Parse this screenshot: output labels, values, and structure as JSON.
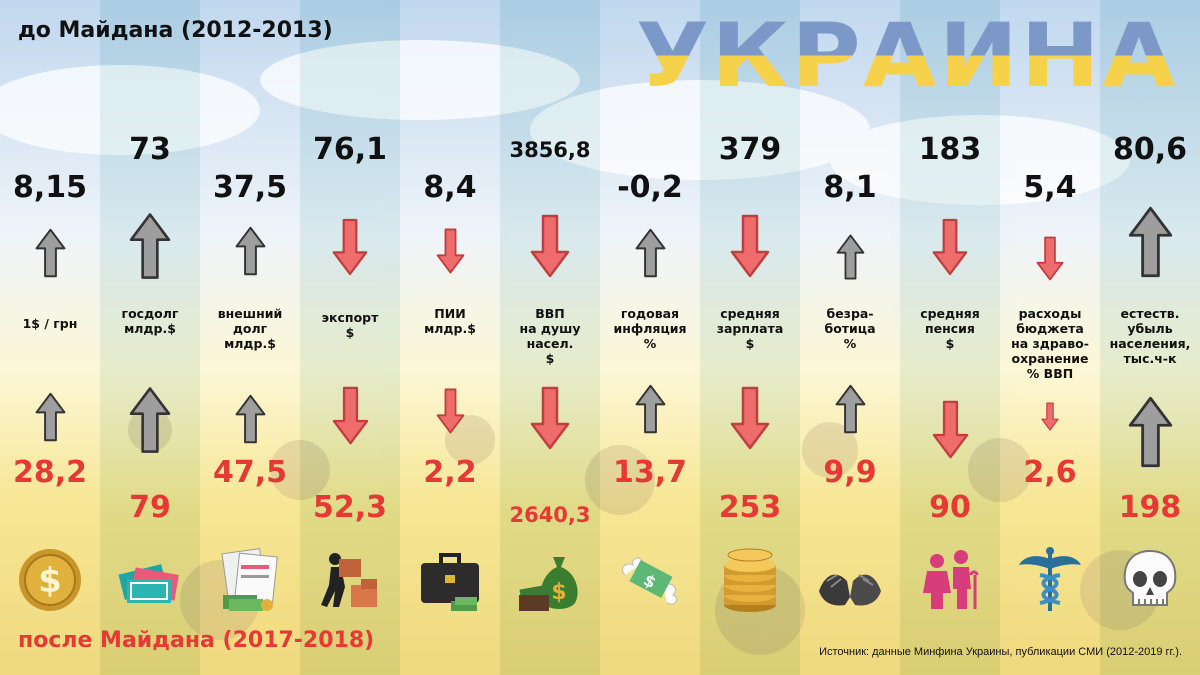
{
  "header": {
    "before": "до Майдана (2012-2013)",
    "after": "после Майдана (2017-2018)",
    "country": "УКРАИНА",
    "source": "Источник: данные Минфина Украины, публикации СМИ (2012-2019 гг.)."
  },
  "colors": {
    "before": "#111111",
    "after": "#e53935",
    "up_arrow": "#9e9e9e",
    "down_arrow": "#ef6c6c"
  },
  "indicators": [
    {
      "label": [
        "1$ / грн"
      ],
      "before": "8,15",
      "after": "28,2",
      "before_dir": "up",
      "after_dir": "up",
      "icon": "gold-coin-icon"
    },
    {
      "label": [
        "госдолг",
        "млдр.$"
      ],
      "before": "73",
      "after": "79",
      "before_dir": "up",
      "after_dir": "up",
      "icon": "banknotes-icon"
    },
    {
      "label": [
        "внешний",
        "долг",
        "млдр.$"
      ],
      "before": "37,5",
      "after": "47,5",
      "before_dir": "up",
      "after_dir": "up",
      "icon": "bills-and-cash-icon"
    },
    {
      "label": [
        "экспорт",
        "$"
      ],
      "before": "76,1",
      "after": "52,3",
      "before_dir": "down",
      "after_dir": "down",
      "icon": "carrying-boxes-icon"
    },
    {
      "label": [
        "ПИИ",
        "млдр.$"
      ],
      "before": "8,4",
      "after": "2,2",
      "before_dir": "down",
      "after_dir": "down",
      "icon": "briefcase-icon"
    },
    {
      "label": [
        "ВВП",
        "на душу",
        "насел.",
        "$"
      ],
      "before": "3856,8",
      "after": "2640,3",
      "before_dir": "down",
      "after_dir": "down",
      "icon": "money-bag-icon"
    },
    {
      "label": [
        "годовая",
        "инфляция",
        "%"
      ],
      "before": "-0,2",
      "after": "13,7",
      "before_dir": "up",
      "after_dir": "up",
      "icon": "flying-money-icon"
    },
    {
      "label": [
        "средняя",
        "зарплата",
        "$"
      ],
      "before": "379",
      "after": "253",
      "before_dir": "down",
      "after_dir": "down",
      "icon": "coin-stack-icon"
    },
    {
      "label": [
        "безра-",
        "ботица",
        "%"
      ],
      "before": "8,1",
      "after": "9,9",
      "before_dir": "up",
      "after_dir": "up",
      "icon": "begging-hands-icon"
    },
    {
      "label": [
        "средняя",
        "пенсия",
        "$"
      ],
      "before": "183",
      "after": "90",
      "before_dir": "down",
      "after_dir": "down",
      "icon": "elderly-couple-icon"
    },
    {
      "label": [
        "расходы",
        "бюджета",
        "на здраво-",
        "охранение",
        "% ВВП"
      ],
      "before": "5,4",
      "after": "2,6",
      "before_dir": "down",
      "after_dir": "down",
      "icon": "caduceus-icon"
    },
    {
      "label": [
        "естеств.",
        "убыль",
        "населения,",
        "тыс.ч-к"
      ],
      "before": "80,6",
      "after": "198",
      "before_dir": "up",
      "after_dir": "up",
      "icon": "skull-icon"
    }
  ]
}
